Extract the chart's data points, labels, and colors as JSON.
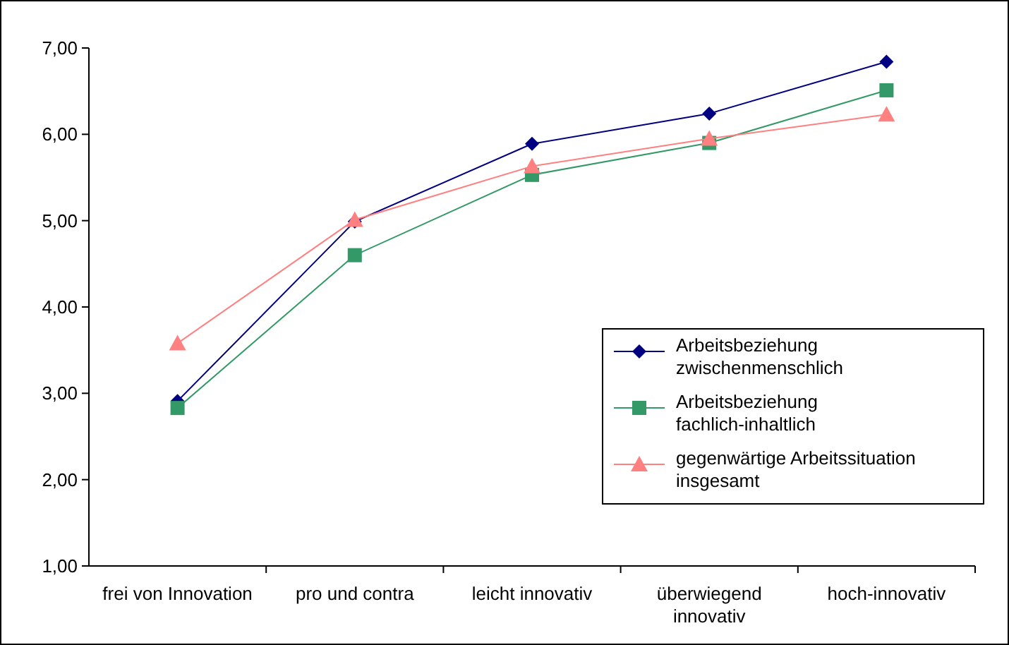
{
  "chart_data": {
    "type": "line",
    "categories": [
      "frei von Innovation",
      "pro und contra",
      "leicht innovativ",
      "überwiegend innovativ",
      "hoch-innovativ"
    ],
    "ylim": [
      1,
      7
    ],
    "yticks": [
      {
        "value": 1,
        "label": "1,00"
      },
      {
        "value": 2,
        "label": "2,00"
      },
      {
        "value": 3,
        "label": "3,00"
      },
      {
        "value": 4,
        "label": "4,00"
      },
      {
        "value": 5,
        "label": "5,00"
      },
      {
        "value": 6,
        "label": "6,00"
      },
      {
        "value": 7,
        "label": "7,00"
      }
    ],
    "grid": false,
    "legend": "right",
    "line_style": "solid",
    "series": [
      {
        "name": "Arbeitsbeziehung zwischenmenschlich",
        "color": "#000080",
        "marker": "diamond",
        "values": [
          2.91,
          4.99,
          5.89,
          6.24,
          6.84
        ]
      },
      {
        "name": "Arbeitsbeziehung fachlich-inhaltlich",
        "color": "#339966",
        "marker": "square",
        "values": [
          2.83,
          4.6,
          5.53,
          5.9,
          6.51
        ]
      },
      {
        "name": "gegenwärtige Arbeitssituation insgesamt",
        "color": "#ff8080",
        "marker": "triangle",
        "values": [
          3.58,
          5.01,
          5.63,
          5.95,
          6.23
        ]
      }
    ]
  }
}
